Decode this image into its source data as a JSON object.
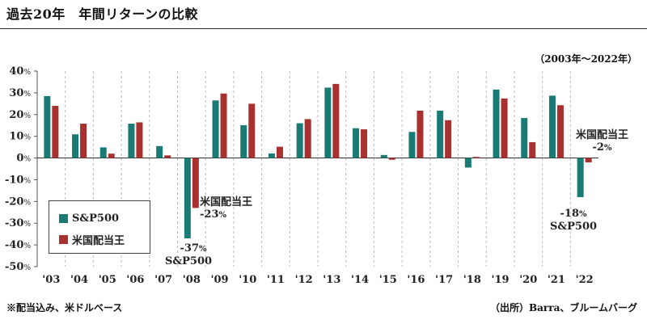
{
  "header": {
    "title": "過去20年　年間リターンの比較",
    "period": "（2003年～2022年）"
  },
  "footer": {
    "note": "※配当込み、米ドルベース",
    "source": "（出所）Barra、ブルームバーグ"
  },
  "colors": {
    "sp500": "#1a7a74",
    "dividend_kings": "#a8302f"
  },
  "legend": {
    "sp500": "S&P500",
    "dividend_kings": "米国配当王"
  },
  "annotations": {
    "y2008_sp500_value": "-37",
    "y2008_sp500_unit": "%",
    "y2008_sp500_name": "S&P500",
    "y2008_kings_name": "米国配当王",
    "y2008_kings_value": "-23",
    "y2008_kings_unit": "%",
    "y2022_kings_name": "米国配当王",
    "y2022_kings_value": "-2",
    "y2022_kings_unit": "%",
    "y2022_sp500_value": "-18",
    "y2022_sp500_unit": "%",
    "y2022_sp500_name": "S&P500"
  },
  "chart_data": {
    "type": "bar",
    "categories": [
      "'03",
      "'04",
      "'05",
      "'06",
      "'07",
      "'08",
      "'09",
      "'10",
      "'11",
      "'12",
      "'13",
      "'14",
      "'15",
      "'16",
      "'17",
      "'18",
      "'19",
      "'20",
      "'21",
      "'22"
    ],
    "series": [
      {
        "name": "S&P500",
        "values": [
          28.5,
          10.9,
          4.9,
          15.8,
          5.5,
          -37,
          26.5,
          15.1,
          2.1,
          16.0,
          32.4,
          13.7,
          1.4,
          12.0,
          21.8,
          -4.4,
          31.5,
          18.4,
          28.7,
          -18
        ]
      },
      {
        "name": "米国配当王",
        "values": [
          24.0,
          15.8,
          2.0,
          16.4,
          1.2,
          -23,
          29.7,
          25.0,
          5.2,
          17.9,
          34.1,
          13.2,
          -0.8,
          21.8,
          17.4,
          0.5,
          27.4,
          7.3,
          24.3,
          -2
        ]
      }
    ],
    "ylim": [
      -50,
      40
    ],
    "yticks": [
      40,
      30,
      20,
      10,
      0,
      -10,
      -20,
      -30,
      -40,
      -50
    ],
    "ytick_unit": "%",
    "grid": "vertical-dashed"
  }
}
